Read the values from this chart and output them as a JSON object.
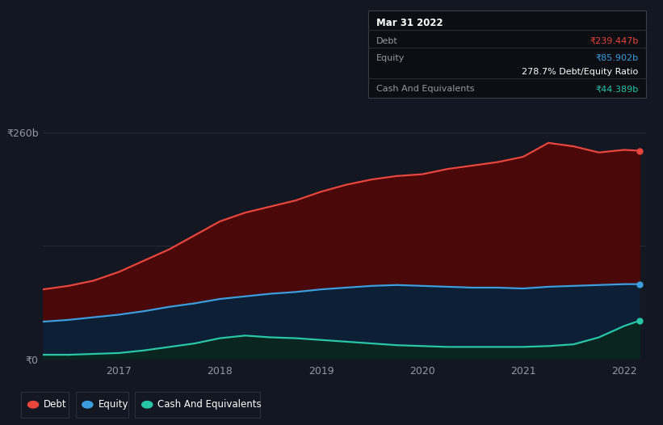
{
  "bg_color": "#131722",
  "plot_bg_color": "#131722",
  "tooltip": {
    "date": "Mar 31 2022",
    "debt_label": "Debt",
    "debt_value": "₹239.447b",
    "equity_label": "Equity",
    "equity_value": "₹85.902b",
    "ratio_value": "278.7% Debt/Equity Ratio",
    "cash_label": "Cash And Equivalents",
    "cash_value": "₹44.389b"
  },
  "ylabel_top": "₹260b",
  "ylabel_bottom": "₹0",
  "x_ticks": [
    "2017",
    "2018",
    "2019",
    "2020",
    "2021",
    "2022"
  ],
  "debt_color": "#e8453c",
  "equity_color": "#3b9ddd",
  "cash_color": "#26c6a6",
  "debt_fill_color": "#4a0808",
  "equity_fill_color": "#0d1f35",
  "cash_fill_color": "#0a2520",
  "grid_color": "#2a2e39",
  "text_color": "#9598a1",
  "legend_border_color": "#2a2e39",
  "years": [
    2016.25,
    2016.5,
    2016.75,
    2017.0,
    2017.25,
    2017.5,
    2017.75,
    2018.0,
    2018.25,
    2018.5,
    2018.75,
    2019.0,
    2019.25,
    2019.5,
    2019.75,
    2020.0,
    2020.25,
    2020.5,
    2020.75,
    2021.0,
    2021.25,
    2021.5,
    2021.75,
    2022.0,
    2022.15
  ],
  "debt": [
    80,
    84,
    90,
    100,
    113,
    126,
    142,
    158,
    168,
    175,
    182,
    192,
    200,
    206,
    210,
    212,
    218,
    222,
    226,
    232,
    248,
    244,
    237,
    240,
    239
  ],
  "equity": [
    43,
    45,
    48,
    51,
    55,
    60,
    64,
    69,
    72,
    75,
    77,
    80,
    82,
    84,
    85,
    84,
    83,
    82,
    82,
    81,
    83,
    84,
    85,
    86,
    86
  ],
  "cash": [
    5,
    5,
    6,
    7,
    10,
    14,
    18,
    24,
    27,
    25,
    24,
    22,
    20,
    18,
    16,
    15,
    14,
    14,
    14,
    14,
    15,
    17,
    25,
    38,
    44
  ]
}
